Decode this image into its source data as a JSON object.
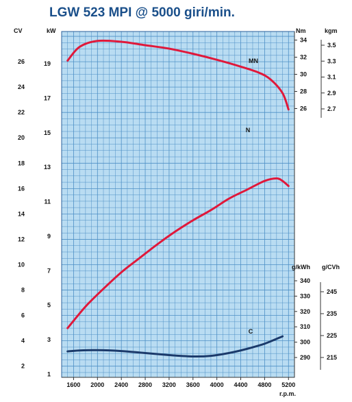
{
  "title": "LGW 523 MPI @ 5000 giri/min.",
  "chart_data": {
    "type": "line",
    "x_unit": "r.p.m.",
    "x_ticks": [
      1600,
      2000,
      2400,
      2800,
      3200,
      3600,
      4000,
      4400,
      4800,
      5200
    ],
    "xlim": [
      1400,
      5300
    ],
    "axes": {
      "cv": {
        "label": "CV",
        "ticks": [
          2,
          4,
          6,
          8,
          10,
          12,
          14,
          16,
          18,
          20,
          22,
          24,
          26
        ],
        "range": [
          1.12,
          28.38
        ]
      },
      "kw": {
        "label": "kW",
        "ticks": [
          1,
          3,
          5,
          7,
          9,
          11,
          13,
          15,
          17,
          19
        ],
        "range": [
          0.82,
          20.87
        ]
      },
      "nm": {
        "label": "Nm",
        "ticks": [
          26,
          28,
          30,
          32,
          34
        ],
        "range": [
          25,
          35
        ]
      },
      "kgm": {
        "label": "kgm",
        "ticks": [
          2.7,
          2.9,
          3.1,
          3.3,
          3.5
        ]
      },
      "gkwh": {
        "label": "g/kWh",
        "ticks": [
          290,
          300,
          310,
          320,
          330,
          340
        ],
        "range": [
          286,
          340
        ]
      },
      "gcvh": {
        "label": "g/CVh",
        "ticks": [
          215,
          225,
          235,
          245
        ]
      }
    },
    "series": [
      {
        "name": "MN",
        "unit": "Nm",
        "color": "#e0183a",
        "x": [
          1500,
          1700,
          2000,
          2400,
          2800,
          3200,
          3600,
          4000,
          4400,
          4700,
          4900,
          5100,
          5200
        ],
        "y": [
          31.6,
          33.2,
          33.9,
          33.8,
          33.4,
          33.0,
          32.4,
          31.7,
          30.9,
          30.2,
          29.4,
          27.8,
          25.9
        ]
      },
      {
        "name": "N",
        "unit": "CV",
        "color": "#e0183a",
        "x": [
          1500,
          1800,
          2100,
          2400,
          2700,
          3000,
          3300,
          3600,
          3900,
          4200,
          4500,
          4800,
          5000,
          5100,
          5200
        ],
        "y": [
          5.0,
          6.7,
          8.1,
          9.4,
          10.5,
          11.6,
          12.6,
          13.5,
          14.3,
          15.2,
          15.9,
          16.6,
          16.8,
          16.6,
          16.2
        ]
      },
      {
        "name": "C",
        "unit": "g/kWh",
        "color": "#1b3a6b",
        "x": [
          1500,
          1700,
          2000,
          2400,
          2800,
          3200,
          3600,
          3900,
          4200,
          4500,
          4800,
          5100
        ],
        "y": [
          294.0,
          294.6,
          294.8,
          294.2,
          292.9,
          291.6,
          290.7,
          291.1,
          292.9,
          295.6,
          299.0,
          303.8
        ]
      }
    ],
    "colors": {
      "plot_background": "#b9dcf2",
      "grid": "#4d8fc5",
      "curve_red": "#e0183a",
      "curve_blue": "#1b3a6b",
      "title": "#1a4f8a"
    },
    "grid": true
  }
}
